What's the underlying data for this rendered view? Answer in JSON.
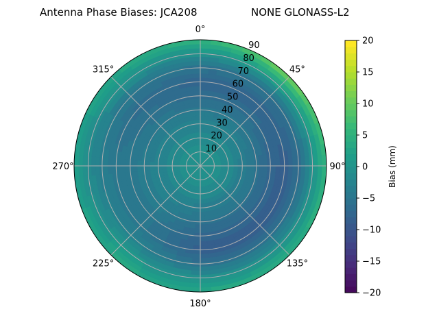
{
  "chart_data": {
    "type": "heatmap",
    "projection": "polar",
    "title_left": "Antenna Phase Biases: JCA208",
    "title_right": "NONE GLONASS-L2",
    "theta_zero": "north",
    "theta_direction": "clockwise",
    "theta_tick_labels": [
      "0°",
      "45°",
      "90°",
      "135°",
      "180°",
      "225°",
      "270°",
      "315°"
    ],
    "radial_ticks": [
      10,
      20,
      30,
      40,
      50,
      60,
      70,
      80,
      90
    ],
    "radial_tick_labels": [
      "10",
      "20",
      "30",
      "40",
      "50",
      "60",
      "70",
      "80",
      "90"
    ],
    "rlim": [
      0,
      90
    ],
    "grid": true,
    "colormap": "viridis",
    "colorbar": {
      "label": "Bias (mm)",
      "range": [
        -20,
        20
      ],
      "ticks": [
        -20,
        -15,
        -10,
        -5,
        0,
        5,
        10,
        15,
        20
      ],
      "tick_labels": [
        "−20",
        "−15",
        "−10",
        "−5",
        "0",
        "5",
        "10",
        "15",
        "20"
      ]
    },
    "zenith": [
      0,
      10,
      20,
      30,
      40,
      50,
      60,
      70,
      80,
      90
    ],
    "azimuth": [
      0,
      45,
      90,
      135,
      180,
      225,
      270,
      315
    ],
    "values_by_azimuth": [
      [
        0,
        0,
        -1,
        -2,
        -4,
        -6,
        -7,
        -5,
        0,
        6
      ],
      [
        0,
        0,
        -1,
        -2,
        -4,
        -6,
        -7,
        -5,
        2,
        12
      ],
      [
        0,
        0,
        -1,
        -3,
        -5,
        -7,
        -8,
        -6,
        0,
        6
      ],
      [
        0,
        0,
        -1,
        -3,
        -5,
        -7,
        -8,
        -5,
        0,
        5
      ],
      [
        0,
        0,
        -1,
        -3,
        -5,
        -7,
        -8,
        -5,
        0,
        4
      ],
      [
        0,
        0,
        -1,
        -2,
        -3,
        -4,
        -4,
        -2,
        1,
        4
      ],
      [
        0,
        0,
        -1,
        -2,
        -3,
        -4,
        -4,
        -3,
        -1,
        2
      ],
      [
        0,
        0,
        -1,
        -2,
        -4,
        -5,
        -6,
        -4,
        0,
        4
      ]
    ]
  }
}
